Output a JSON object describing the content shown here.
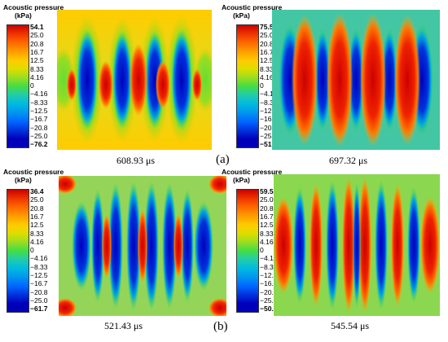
{
  "figure": {
    "colors": [
      "#cc0000",
      "#ee3300",
      "#ff6600",
      "#ff9900",
      "#ffcc00",
      "#dddd00",
      "#99dd22",
      "#44dd44",
      "#22ccaa",
      "#00bbdd",
      "#0099ee",
      "#0066ff",
      "#0033dd",
      "#0000bb"
    ],
    "panels": [
      {
        "id": "a-left",
        "legend_title_line1": "Acoustic pressure",
        "legend_title_line2": "(kPa)",
        "ticks": [
          "54.1",
          "25.0",
          "20.8",
          "16.7",
          "12.5",
          "8.33",
          "4.16",
          "0",
          "−4.16",
          "−8.33",
          "−12.5",
          "−16.7",
          "−20.8",
          "−25.0",
          "−76.2"
        ],
        "time_label": "608.93 μs"
      },
      {
        "id": "a-right",
        "legend_title_line1": "Acoustic pressure",
        "legend_title_line2": "(kPa)",
        "ticks": [
          "75.5",
          "25.0",
          "20.8",
          "16.7",
          "12.5",
          "8.33",
          "4.16",
          "0",
          "−4.16",
          "−8.33",
          "−12.5",
          "−16.7",
          "−20.8",
          "−25.0",
          "−51.6"
        ],
        "time_label": "697.32 μs"
      },
      {
        "id": "b-left",
        "legend_title_line1": "Acoustic pressure",
        "legend_title_line2": "(kPa)",
        "ticks": [
          "36.4",
          "25.0",
          "20.8",
          "16.7",
          "12.5",
          "8.33",
          "4.16",
          "0",
          "−4.16",
          "−8.33",
          "−12.5",
          "−16.7",
          "−20.8",
          "−25.0",
          "−61.7"
        ],
        "time_label": "521.43 μs"
      },
      {
        "id": "b-right",
        "legend_title_line1": "Acoustic pressure",
        "legend_title_line2": "(kPa)",
        "ticks": [
          "59.5",
          "25.0",
          "20.8",
          "16.7",
          "12.5",
          "8.33",
          "4.16",
          "0",
          "−4.16",
          "−8.33",
          "−12.5",
          "−16.7",
          "−20.8",
          "−25.0",
          "−50.9"
        ],
        "time_label": "545.54 μs"
      }
    ],
    "sub_labels": [
      "(a)",
      "(b)"
    ]
  }
}
